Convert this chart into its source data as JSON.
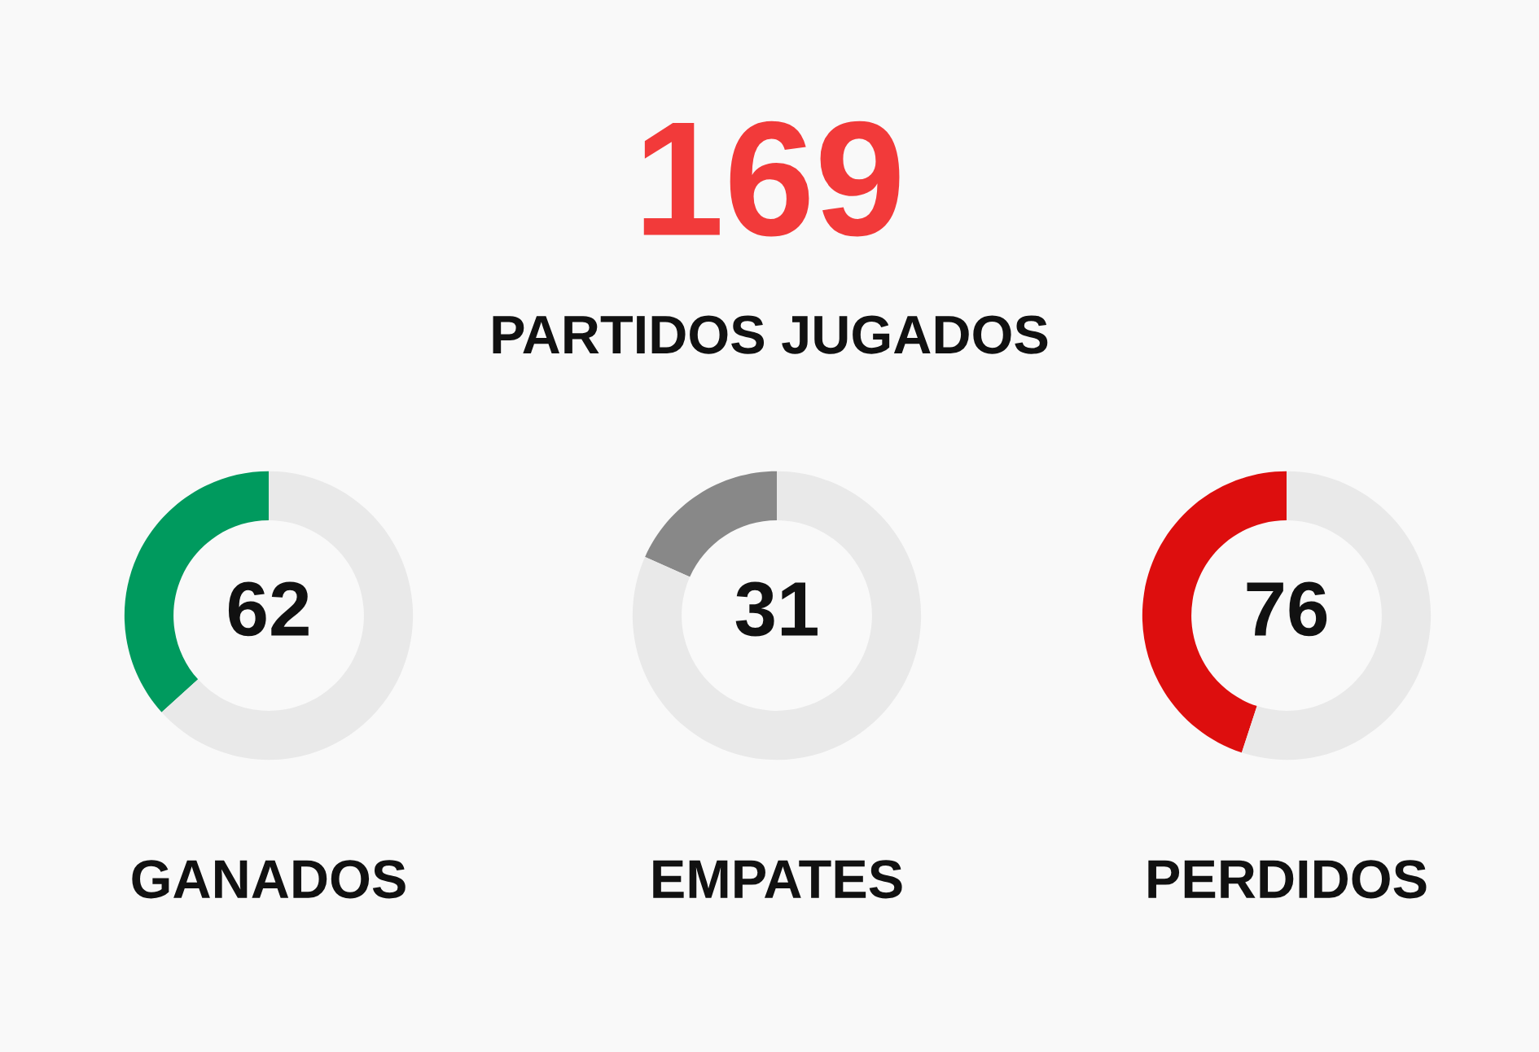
{
  "chart_data": [
    {
      "type": "other",
      "title": "169",
      "subtitle": "PARTIDOS JUGADOS",
      "color": "#f23a3a"
    },
    {
      "type": "donut",
      "title": "GANADOS",
      "categories": [
        null,
        null
      ],
      "values": [
        62,
        107
      ],
      "colors": [
        "#009a5e",
        "#e9e9e9"
      ],
      "value_labels": [
        "62",
        null
      ]
    },
    {
      "type": "donut",
      "title": "EMPATES",
      "categories": [
        null,
        null
      ],
      "values": [
        31,
        138
      ],
      "colors": [
        "#888888",
        "#e9e9e9"
      ],
      "value_labels": [
        "31",
        null
      ]
    },
    {
      "type": "donut",
      "title": "PERDIDOS",
      "categories": [
        null,
        null
      ],
      "values": [
        76,
        93
      ],
      "colors": [
        "#dd0e0e",
        "#e9e9e9"
      ],
      "value_labels": [
        "76",
        null
      ]
    }
  ]
}
